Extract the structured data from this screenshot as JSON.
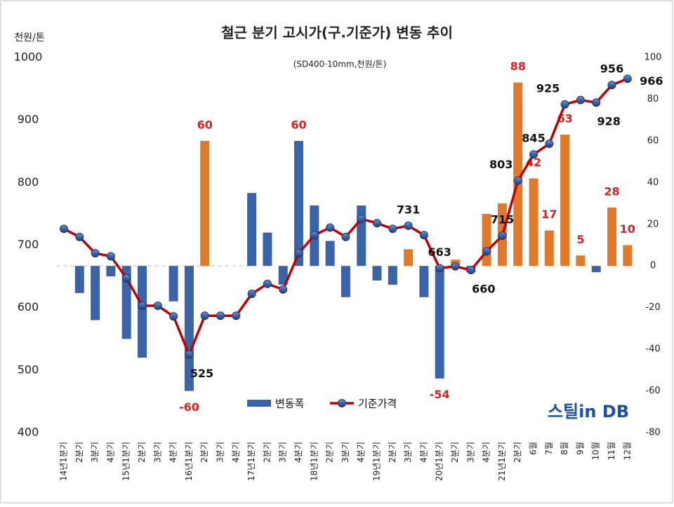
{
  "chart_data": {
    "type": "bar_line",
    "title": "철근 분기 고시가(구.기준가) 변동 추이",
    "subtitle": "(SD400·10mm,천원/톤)",
    "y_label": "천원/톤",
    "logo": "스틸in DB",
    "categories": [
      "14년1분기",
      "2분기",
      "3분기",
      "4분기",
      "15년1분기",
      "2분기",
      "3분기",
      "4분기",
      "16년1분기",
      "2분기",
      "3분기",
      "4분기",
      "17년1분기",
      "2분기",
      "3분기",
      "4분기",
      "18년1분기",
      "2분기",
      "3분기",
      "4분기",
      "19년1분기",
      "2분기",
      "3분기",
      "4분기",
      "20년1분기",
      "2분기",
      "3분기",
      "4분기",
      "21년1분기",
      "2분기",
      "6월",
      "7월",
      "8월",
      "9월",
      "10월",
      "11월",
      "12월"
    ],
    "ylim": [
      400,
      1000
    ],
    "yticks": [
      400,
      500,
      600,
      700,
      800,
      900,
      1000
    ],
    "y2lim": [
      -80,
      100
    ],
    "y2ticks": [
      -80,
      -60,
      -40,
      -20,
      0,
      20,
      40,
      60,
      80,
      100
    ],
    "series": [
      {
        "name": "변동폭",
        "type": "bar",
        "axis": "y2",
        "color": "#3a64a8",
        "colors": [
          "#3a64a8",
          "#3a64a8",
          "#3a64a8",
          "#3a64a8",
          "#3a64a8",
          "#3a64a8",
          "#3a64a8",
          "#3a64a8",
          "#3a64a8",
          "#e07a2a",
          "#3a64a8",
          "#3a64a8",
          "#3a64a8",
          "#3a64a8",
          "#3a64a8",
          "#3a64a8",
          "#3a64a8",
          "#3a64a8",
          "#3a64a8",
          "#3a64a8",
          "#3a64a8",
          "#3a64a8",
          "#e07a2a",
          "#3a64a8",
          "#3a64a8",
          "#e07a2a",
          "#3a64a8",
          "#e07a2a",
          "#e07a2a",
          "#e07a2a",
          "#e07a2a",
          "#e07a2a",
          "#e07a2a",
          "#e07a2a",
          "#3a64a8",
          "#e07a2a",
          "#e07a2a"
        ],
        "values": [
          null,
          -13,
          -26,
          -5,
          -35,
          -44,
          0,
          -17,
          -60,
          60,
          0,
          0,
          35,
          16,
          -9,
          60,
          29,
          12,
          -15,
          29,
          -7,
          -9,
          8,
          -15,
          -54,
          3,
          -3,
          25,
          30,
          88,
          42,
          17,
          63,
          5,
          -3,
          28,
          10
        ],
        "value_labels": [
          null,
          null,
          null,
          null,
          null,
          null,
          null,
          null,
          "-60",
          "60",
          null,
          null,
          null,
          null,
          null,
          "60",
          null,
          null,
          null,
          null,
          null,
          null,
          null,
          null,
          "-54",
          null,
          null,
          null,
          null,
          "88",
          "42",
          "17",
          "63",
          "5",
          null,
          "28",
          "10"
        ]
      },
      {
        "name": "기준가격",
        "type": "line",
        "color": "#c00000",
        "values": [
          726,
          713,
          687,
          682,
          647,
          603,
          603,
          586,
          525,
          587,
          587,
          587,
          622,
          638,
          629,
          687,
          716,
          728,
          713,
          742,
          735,
          726,
          731,
          716,
          663,
          666,
          660,
          690,
          715,
          803,
          845,
          862,
          925,
          932,
          928,
          956,
          966
        ],
        "value_labels": [
          null,
          null,
          null,
          null,
          null,
          null,
          null,
          null,
          "525",
          null,
          null,
          null,
          null,
          null,
          null,
          null,
          null,
          null,
          null,
          null,
          null,
          null,
          "731",
          null,
          "663",
          null,
          "660",
          null,
          "715",
          "803",
          "845",
          null,
          "925",
          null,
          "928",
          "956",
          "966"
        ]
      }
    ]
  }
}
